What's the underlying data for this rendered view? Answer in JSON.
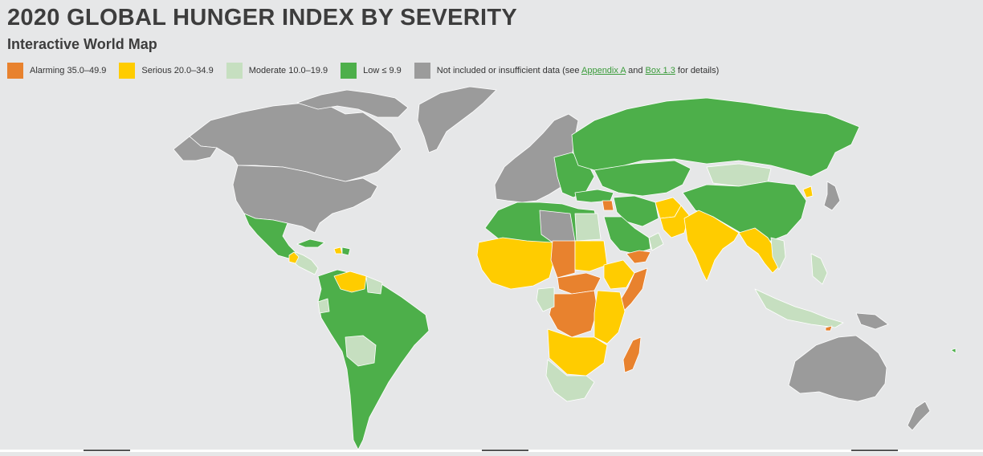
{
  "title": "2020 GLOBAL HUNGER INDEX BY SEVERITY",
  "subtitle": "Interactive World Map",
  "colors": {
    "alarming": "#e8822e",
    "serious": "#ffcc00",
    "moderate": "#c6dfc0",
    "low": "#4daf4a",
    "no_data": "#9b9b9b",
    "background": "#e6e7e8"
  },
  "legend": {
    "alarming": "Alarming 35.0–49.9",
    "serious": "Serious 20.0–34.9",
    "moderate": "Moderate 10.0–19.9",
    "low": "Low ≤ 9.9",
    "no_data_prefix": "Not included or insufficient data (see",
    "appendix_link": "Appendix A",
    "and": "and",
    "box_link": "Box 1.3",
    "no_data_suffix": "for details)"
  }
}
